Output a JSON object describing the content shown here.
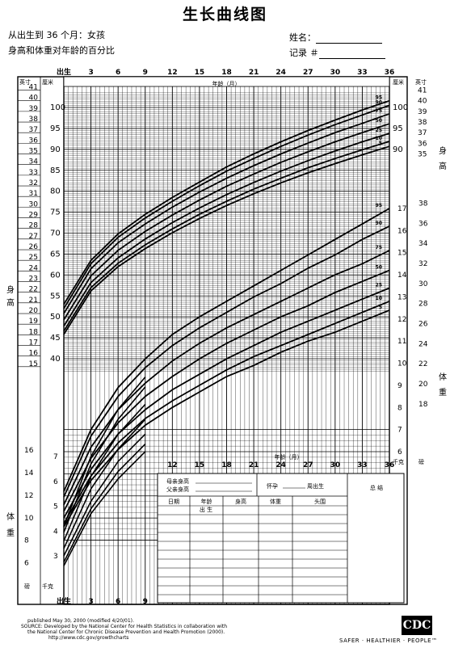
{
  "header": {
    "title": "生长曲线图",
    "subtitle": "从出生到 36 个月：女孩",
    "subtitle2": "身高和体重对年龄的百分比",
    "name_label": "姓名：",
    "record_label": "记录 ＃"
  },
  "axes": {
    "top_age_ticks": [
      "出生",
      "3",
      "6",
      "9",
      "12",
      "15",
      "18",
      "21",
      "24",
      "27",
      "30",
      "33",
      "36"
    ],
    "bottom_age_ticks_full": [
      "出生",
      "3",
      "6",
      "9"
    ],
    "bottom_age_ticks_right": [
      "12",
      "15",
      "18",
      "21",
      "24",
      "27",
      "30",
      "33",
      "36"
    ],
    "age_title": "年龄（月）",
    "inch_label": "英寸",
    "cm_label": "厘米",
    "kg_label": "千克",
    "lb_label": "磅",
    "length_side_label": "身高",
    "weight_side_label": "体重",
    "length_in_ticks": [
      41,
      40,
      39,
      38,
      37,
      36,
      35,
      34,
      33,
      32,
      31,
      30,
      29,
      28,
      27,
      26,
      25,
      24,
      23,
      22,
      21,
      20,
      19,
      18,
      17,
      16,
      15
    ],
    "length_cm_ticks": [
      100,
      95,
      90,
      85,
      80,
      75,
      70,
      65,
      60,
      55,
      50,
      45,
      40
    ],
    "right_length_in_ticks": [
      41,
      40,
      39,
      38,
      37,
      36,
      35
    ],
    "right_length_cm_ticks": [
      100,
      95,
      90
    ],
    "weight_kg_right": [
      17,
      16,
      15,
      14,
      13,
      12,
      11,
      10,
      9,
      8,
      7,
      6
    ],
    "weight_lb_right": [
      38,
      36,
      34,
      32,
      30,
      28,
      26,
      24,
      22,
      20,
      18
    ],
    "weight_lb_left": [
      16,
      14,
      12,
      10,
      8,
      6
    ],
    "weight_kg_left": [
      7,
      6,
      5,
      4,
      3
    ]
  },
  "chart_data": [
    {
      "type": "line",
      "title": "身高",
      "xlabel": "年龄（月）",
      "ylabel": "厘米",
      "xlim": [
        0,
        36
      ],
      "ylim": [
        37,
        103.5
      ],
      "x": [
        0,
        3,
        6,
        9,
        12,
        15,
        18,
        21,
        24,
        27,
        30,
        33,
        36
      ],
      "series": [
        {
          "name": "95",
          "values": [
            53.0,
            63.5,
            69.8,
            74.5,
            78.5,
            82.2,
            85.8,
            88.9,
            91.8,
            94.5,
            97.0,
            99.4,
            101.6
          ]
        },
        {
          "name": "90",
          "values": [
            52.0,
            62.7,
            69.0,
            73.6,
            77.6,
            81.3,
            84.8,
            87.8,
            90.7,
            93.4,
            95.9,
            98.2,
            100.5
          ]
        },
        {
          "name": "75",
          "values": [
            50.8,
            61.5,
            67.7,
            72.2,
            76.2,
            79.8,
            83.1,
            86.1,
            88.9,
            91.5,
            94.0,
            96.2,
            98.5
          ]
        },
        {
          "name": "50",
          "values": [
            49.3,
            59.8,
            65.9,
            70.4,
            74.3,
            77.9,
            81.2,
            84.1,
            86.9,
            89.4,
            91.8,
            94.0,
            96.1
          ]
        },
        {
          "name": "25",
          "values": [
            47.8,
            58.2,
            64.1,
            68.6,
            72.5,
            76.0,
            79.2,
            82.1,
            84.8,
            87.3,
            89.6,
            91.8,
            93.8
          ]
        },
        {
          "name": "10",
          "values": [
            46.6,
            57.0,
            62.8,
            67.2,
            71.0,
            74.5,
            77.6,
            80.5,
            83.1,
            85.6,
            87.8,
            89.9,
            91.9
          ]
        },
        {
          "name": "5",
          "values": [
            45.8,
            56.2,
            62.0,
            66.3,
            70.1,
            73.5,
            76.6,
            79.4,
            82.0,
            84.4,
            86.6,
            88.7,
            90.7
          ]
        }
      ]
    },
    {
      "type": "line",
      "title": "体重",
      "xlabel": "年龄（月）",
      "ylabel": "千克",
      "xlim": [
        0,
        36
      ],
      "ylim": [
        1.8,
        18.7
      ],
      "x": [
        0,
        3,
        6,
        9,
        12,
        15,
        18,
        21,
        24,
        27,
        30,
        33,
        36
      ],
      "series": [
        {
          "name": "95",
          "values": [
            4.2,
            7.0,
            8.9,
            10.2,
            11.3,
            12.1,
            12.8,
            13.5,
            14.2,
            14.9,
            15.6,
            16.3,
            17.0
          ]
        },
        {
          "name": "90",
          "values": [
            3.95,
            6.7,
            8.5,
            9.8,
            10.8,
            11.6,
            12.3,
            13.0,
            13.6,
            14.3,
            14.9,
            15.6,
            16.2
          ]
        },
        {
          "name": "75",
          "values": [
            3.6,
            6.2,
            7.9,
            9.1,
            10.1,
            10.9,
            11.6,
            12.2,
            12.8,
            13.4,
            14.0,
            14.5,
            15.1
          ]
        },
        {
          "name": "50",
          "values": [
            3.3,
            5.7,
            7.3,
            8.5,
            9.4,
            10.2,
            10.9,
            11.5,
            12.1,
            12.6,
            13.2,
            13.7,
            14.2
          ]
        },
        {
          "name": "25",
          "values": [
            3.0,
            5.2,
            6.8,
            7.9,
            8.8,
            9.5,
            10.2,
            10.8,
            11.4,
            11.9,
            12.4,
            12.9,
            13.4
          ]
        },
        {
          "name": "10",
          "values": [
            2.75,
            4.9,
            6.4,
            7.5,
            8.3,
            9.0,
            9.7,
            10.3,
            10.8,
            11.3,
            11.8,
            12.3,
            12.8
          ]
        },
        {
          "name": "5",
          "values": [
            2.6,
            4.7,
            6.1,
            7.2,
            8.0,
            8.7,
            9.4,
            9.9,
            10.5,
            11.0,
            11.4,
            11.9,
            12.4
          ]
        }
      ]
    }
  ],
  "record_table": {
    "mother_height": "母亲身高",
    "father_height": "父亲身高",
    "gestation_label": "怀孕",
    "weeks_label": "周出生",
    "comment_label": "总 结",
    "columns": [
      "日期",
      "年龄",
      "身高",
      "体重",
      "头围"
    ],
    "birth_row_label": "出 生"
  },
  "footer": {
    "line1": "published May 30, 2000 (modified 4/20/01).",
    "line2": "SOURCE: Developed by the National Center for Health Statistics in collaboration with",
    "line3": "the National Center for Chronic Disease Prevention and Health Promotion (2000).",
    "line4": "http://www.cdc.gov/growthcharts",
    "logo": "CDC",
    "slogan": "SAFER · HEALTHIER · PEOPLE™"
  }
}
